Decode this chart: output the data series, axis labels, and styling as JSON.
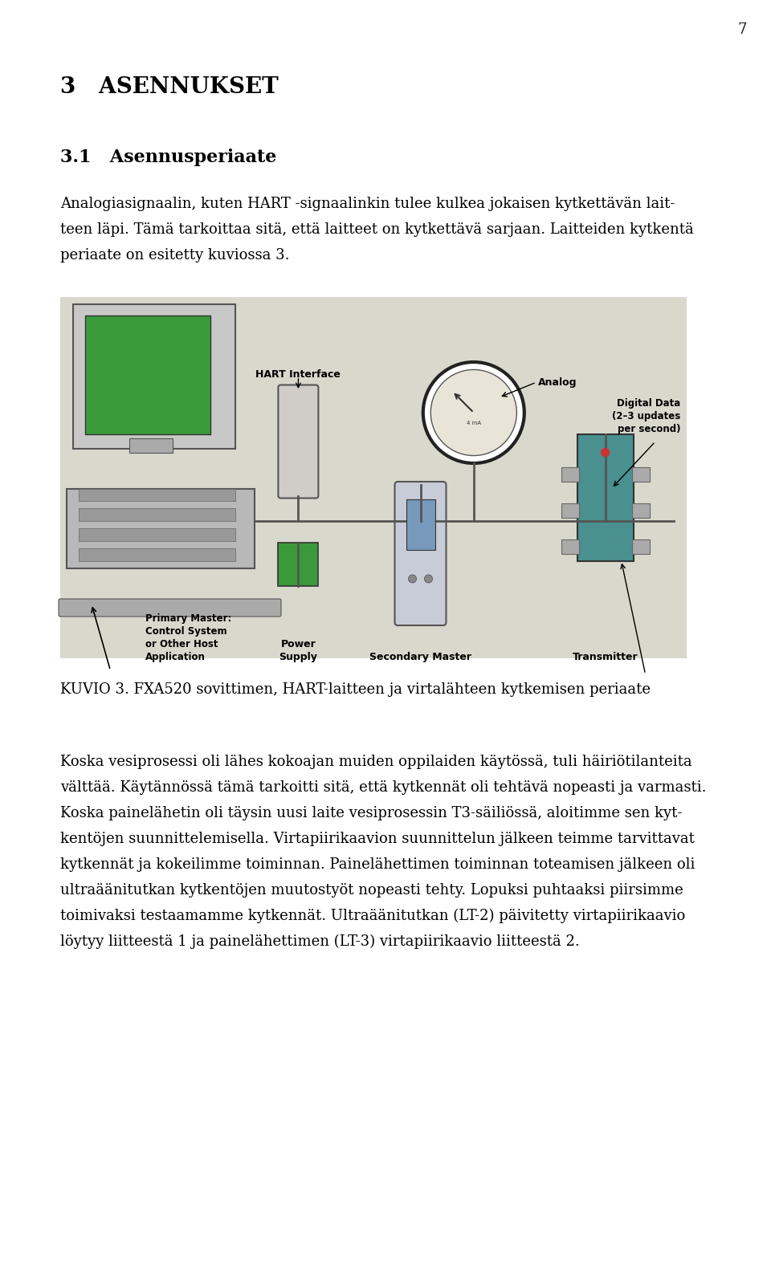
{
  "page_number": "7",
  "bg_color": "#ffffff",
  "text_color": "#000000",
  "heading1": "3   ASENNUKSET",
  "heading2": "3.1   Asennusperiaate",
  "para1_line1": "Analogiasignaalin, kuten HART -signaalinkin tulee kulkea jokaisen kytkettävän lait-",
  "para1_line2": "teen läpi. Tämä tarkoittaa sitä, että laitteet on kytkettävä sarjaan. Laitteiden kytkentä",
  "para1_line3": "periaate on esitetty kuviossa 3.",
  "figure_caption": "KUVIO 3. FXA520 sovittimen, HART-laitteen ja virtalähteen kytkemisen periaate",
  "para2_lines": [
    "Koska vesiprosessi oli lähes kokoajan muiden oppilaiden käytössä, tuli häiriötilanteita",
    "välttää. Käytännössä tämä tarkoitti sitä, että kytkennät oli tehtävä nopeasti ja varmasti.",
    "Koska painelähetin oli täysin uusi laite vesiprosessin T3-säiliössä, aloitimme sen kyt-",
    "kentöjen suunnittelemisella. Virtapiirikaavion suunnittelun jälkeen teimme tarvittavat",
    "kytkennät ja kokeilimme toiminnan. Painelähettimen toiminnan toteamisen jälkeen oli",
    "ultraäänitutkan kytkentöjen muutostyöt nopeasti tehty. Lopuksi puhtaaksi piirsimme",
    "toimivaksi testaamamme kytkennät. Ultraäänitutkan (LT-2) päivitetty virtapiirikaavio",
    "löytyy liitteestä 1 ja painelähettimen (LT-3) virtapiirikaavio liitteestä 2."
  ],
  "fig_bg": "#d8d8cc",
  "wire_color": "#555555",
  "green_color": "#3a9a3a",
  "teal_color": "#4a9090",
  "gray_color": "#b8b8b8",
  "dark_gray": "#888888"
}
